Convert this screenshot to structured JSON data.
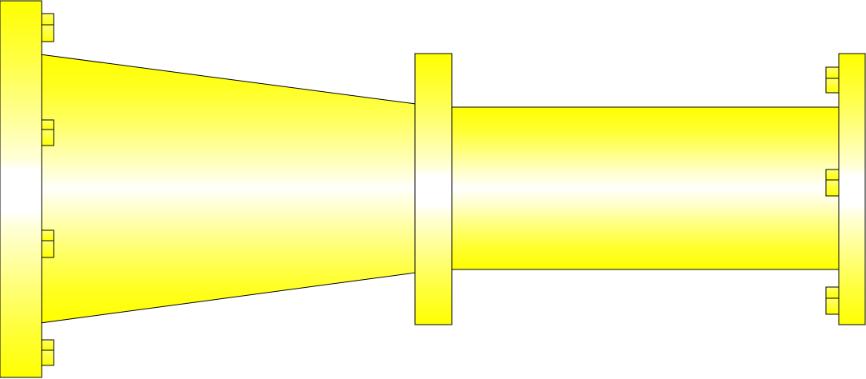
{
  "diagram": {
    "subject": "pipe-assembly",
    "components": [
      "left-flange",
      "conical-reducer",
      "middle-flange",
      "straight-pipe",
      "right-flange"
    ],
    "bolt_groups": {
      "left_flange": 4,
      "right_flange": 3
    }
  },
  "colors": {
    "background": "#ffffff",
    "outline": "#000000",
    "shade_dark": "#ffff00",
    "shade_mid": "#ffff66",
    "shade_light": "#ffffcc",
    "highlight": "#ffffff"
  }
}
